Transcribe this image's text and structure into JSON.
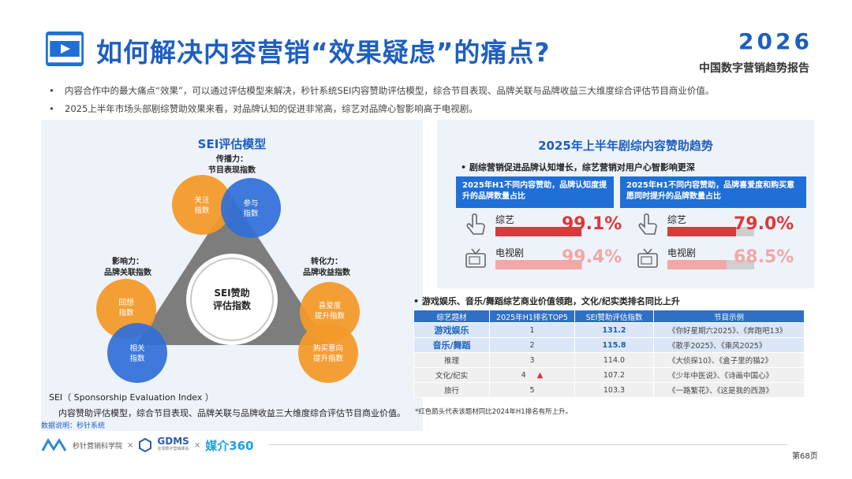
{
  "header": {
    "title": "如何解决内容营销“效果疑虑”的痛点?",
    "brand_year": "2026",
    "brand_subtitle": "中国数字营销趋势报告"
  },
  "bullets": [
    "内容合作中的最大痛点“效果”，可以通过评估模型来解决，秒针系统SEI内容赞助评估模型，综合节目表现、品牌关联与品牌收益三大维度综合评估节目商业价值。",
    "2025上半年市场头部剧综赞助效果来看，对品牌认知的促进非常高，综艺对品牌心智影响高于电视剧。"
  ],
  "sei_model": {
    "title": "SEI评估模型",
    "top_label_1": "传播力：",
    "top_label_2": "节目表现指数",
    "left_label_1": "影响力：",
    "left_label_2": "品牌关联指数",
    "right_label_1": "转化力：",
    "right_label_2": "品牌收益指数",
    "center_1": "SEI赞助",
    "center_2": "评估指数",
    "c_attention_1": "关注",
    "c_attention_2": "指数",
    "c_participate_1": "参与",
    "c_participate_2": "指数",
    "c_recall_1": "回想",
    "c_recall_2": "指数",
    "c_relevance_1": "相关",
    "c_relevance_2": "指数",
    "c_preference_1": "喜爱度",
    "c_preference_2": "提升指数",
    "c_purchase_1": "购买意向",
    "c_purchase_2": "提升指数",
    "definition": "SEI（ Sponsorship Evaluation Index ）",
    "description": "内容赞助评估模型，综合节目表现、品牌关联与品牌收益三大维度综合评估节目商业价值。",
    "source": "数据说明：秒针系统"
  },
  "trend": {
    "title": "2025年上半年剧综内容赞助趋势",
    "subtitle": "• 剧综营销促进品牌认知增长，综艺营销对用户心智影响更深",
    "box_left": "2025年H1不同内容赞助，品牌认知度提升的品牌数量占比",
    "box_right": "2025年H1不同内容赞助，品牌喜爱度和购买意愿同时提升的品牌数量占比",
    "left_rows": [
      {
        "name": "综艺",
        "pct": "99.1%",
        "value": 0.991,
        "color": "#d93a3a"
      },
      {
        "name": "电视剧",
        "pct": "99.4%",
        "value": 0.994,
        "color": "#f2a7a7"
      }
    ],
    "right_rows": [
      {
        "name": "综艺",
        "pct": "79.0%",
        "value": 0.79,
        "color": "#d93a3a"
      },
      {
        "name": "电视剧",
        "pct": "68.5%",
        "value": 0.685,
        "color": "#f2a7a7"
      }
    ]
  },
  "table": {
    "heading": "• 游戏娱乐、音乐/舞蹈综艺商业价值领跑，文化/纪实类排名同比上升",
    "columns": [
      "综艺题材",
      "2025年H1排名TOP5",
      "SEI赞助评估指数",
      "节目示例"
    ],
    "rows": [
      {
        "genre": "游戏娱乐",
        "rank": "1",
        "score": "131.2",
        "cases": "《你好星期六2025》、《奔跑吧13》"
      },
      {
        "genre": "音乐/舞蹈",
        "rank": "2",
        "score": "115.8",
        "cases": "《歌手2025》、《乘风2025》"
      },
      {
        "genre": "推理",
        "rank": "3",
        "score": "114.0",
        "cases": "《大侦探10》、《盒子里的猫2》"
      },
      {
        "genre": "文化/纪实",
        "rank": "4",
        "score": "107.2",
        "cases": "《少年中医说》、《诗画中国心》"
      },
      {
        "genre": "旅行",
        "rank": "5",
        "score": "103.3",
        "cases": "《一路繁花》、《这是我的西游》"
      }
    ],
    "note": "*红色箭头代表该题材同比2024年H1排名有所上升。"
  },
  "footer": {
    "logo_1": "秒针营销科学院",
    "x1": "×",
    "gdms": "GDMS",
    "gdms_sub": "全球数字营销峰会",
    "x2": "×",
    "meijie": "媒介360",
    "page": "第68页"
  }
}
